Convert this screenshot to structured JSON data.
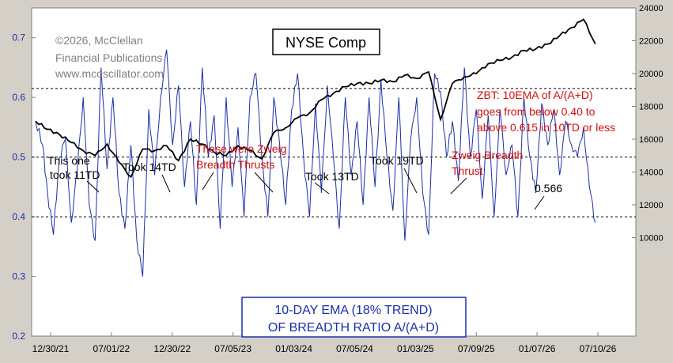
{
  "chart_data": {
    "type": "line",
    "title": "NYSE Comp",
    "copyright": [
      "©2026, McClellan",
      "Financial Publications",
      "www.mcoscillator.com"
    ],
    "x_ticks": [
      "12/30/21",
      "07/01/22",
      "12/30/22",
      "07/05/23",
      "01/03/24",
      "07/05/24",
      "01/03/25",
      "07/09/25",
      "01/07/26",
      "07/10/26"
    ],
    "left_axis": {
      "label_series": "10-DAY EMA (18% TREND) OF BREADTH RATIO A/(A+D)",
      "ticks": [
        "0.7",
        "0.6",
        "0.5",
        "0.4",
        "0.3",
        "0.2"
      ],
      "range": [
        0.2,
        0.75
      ]
    },
    "right_axis": {
      "label_series": "NYSE Composite",
      "ticks": [
        "24000",
        "22000",
        "20000",
        "18000",
        "16000",
        "14000",
        "12000",
        "10000"
      ],
      "range": [
        4000,
        24000
      ]
    },
    "reference_lines": [
      0.615,
      0.5,
      0.4
    ],
    "breadth_title": [
      "10-DAY EMA (18% TREND)",
      "OF BREADTH RATIO A/(A+D)"
    ],
    "zbt_note": [
      "ZBT: 10EMA of A/(A+D)",
      "goes from below 0.40 to",
      "above 0.615 in 10TD or less"
    ],
    "annotations": [
      {
        "lines": [
          "This one",
          "took 11TD"
        ],
        "color": "black"
      },
      {
        "lines": [
          "Took 14TD"
        ],
        "color": "black"
      },
      {
        "lines": [
          "These were Zweig",
          "Breadth Thrusts"
        ],
        "color": "red"
      },
      {
        "lines": [
          "Took 13TD"
        ],
        "color": "black"
      },
      {
        "lines": [
          "Took 19TD"
        ],
        "color": "black"
      },
      {
        "lines": [
          "Zweig Breadth",
          "Thrust"
        ],
        "color": "red"
      },
      {
        "lines": [
          "0.566"
        ],
        "color": "black"
      }
    ],
    "series": [
      {
        "name": "NYSE Composite",
        "x": [
          0,
          0.02,
          0.04,
          0.06,
          0.08,
          0.1,
          0.12,
          0.14,
          0.16,
          0.18,
          0.2,
          0.22,
          0.24,
          0.26,
          0.28,
          0.3,
          0.32,
          0.34,
          0.36,
          0.38,
          0.4,
          0.42,
          0.44,
          0.46,
          0.48,
          0.5,
          0.52,
          0.54,
          0.56,
          0.58,
          0.6,
          0.62,
          0.64,
          0.66,
          0.68,
          0.7,
          0.72,
          0.74,
          0.76,
          0.78,
          0.8,
          0.82,
          0.84,
          0.86,
          0.88,
          0.9,
          0.92,
          0.94
        ],
        "values": [
          17100,
          16600,
          16300,
          15800,
          15300,
          15000,
          15700,
          14600,
          13700,
          15400,
          15300,
          15600,
          14700,
          16000,
          15700,
          15200,
          15000,
          15600,
          15300,
          14800,
          16400,
          16700,
          17300,
          17600,
          18400,
          18800,
          19200,
          19400,
          19400,
          19600,
          19500,
          19900,
          19700,
          20100,
          17200,
          19400,
          19800,
          20000,
          20600,
          20800,
          21000,
          21400,
          21500,
          21800,
          22300,
          22800,
          23300,
          21800
        ]
      },
      {
        "name": "10-day EMA of A/(A+D)",
        "x": [
          0,
          0.012,
          0.02,
          0.03,
          0.04,
          0.05,
          0.06,
          0.07,
          0.08,
          0.09,
          0.1,
          0.11,
          0.12,
          0.13,
          0.14,
          0.15,
          0.16,
          0.17,
          0.18,
          0.19,
          0.2,
          0.21,
          0.22,
          0.23,
          0.24,
          0.25,
          0.26,
          0.27,
          0.28,
          0.29,
          0.3,
          0.31,
          0.32,
          0.33,
          0.34,
          0.35,
          0.36,
          0.37,
          0.38,
          0.39,
          0.4,
          0.41,
          0.42,
          0.43,
          0.44,
          0.45,
          0.46,
          0.47,
          0.48,
          0.49,
          0.5,
          0.51,
          0.52,
          0.53,
          0.54,
          0.55,
          0.56,
          0.57,
          0.58,
          0.59,
          0.6,
          0.61,
          0.62,
          0.63,
          0.64,
          0.65,
          0.66,
          0.67,
          0.68,
          0.69,
          0.7,
          0.71,
          0.72,
          0.73,
          0.74,
          0.75,
          0.76,
          0.77,
          0.78,
          0.79,
          0.8,
          0.81,
          0.82,
          0.83,
          0.84,
          0.85,
          0.86,
          0.87,
          0.88,
          0.89,
          0.9,
          0.91,
          0.92,
          0.93,
          0.94
        ],
        "values": [
          0.56,
          0.52,
          0.44,
          0.37,
          0.5,
          0.53,
          0.39,
          0.48,
          0.6,
          0.42,
          0.36,
          0.65,
          0.48,
          0.6,
          0.44,
          0.38,
          0.52,
          0.36,
          0.3,
          0.58,
          0.47,
          0.6,
          0.68,
          0.52,
          0.62,
          0.45,
          0.56,
          0.42,
          0.65,
          0.5,
          0.57,
          0.38,
          0.6,
          0.45,
          0.55,
          0.4,
          0.6,
          0.64,
          0.5,
          0.4,
          0.6,
          0.52,
          0.42,
          0.58,
          0.64,
          0.5,
          0.4,
          0.59,
          0.44,
          0.62,
          0.5,
          0.38,
          0.6,
          0.47,
          0.56,
          0.42,
          0.6,
          0.45,
          0.63,
          0.5,
          0.41,
          0.6,
          0.36,
          0.53,
          0.6,
          0.44,
          0.37,
          0.64,
          0.61,
          0.5,
          0.56,
          0.46,
          0.65,
          0.5,
          0.58,
          0.43,
          0.57,
          0.4,
          0.58,
          0.47,
          0.52,
          0.4,
          0.6,
          0.5,
          0.44,
          0.59,
          0.52,
          0.58,
          0.47,
          0.56,
          0.52,
          0.5,
          0.55,
          0.45,
          0.39
        ]
      }
    ]
  }
}
